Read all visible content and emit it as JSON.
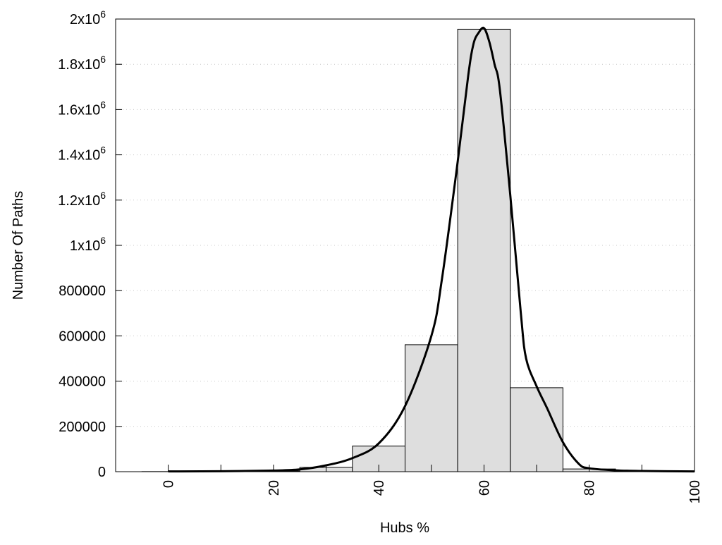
{
  "chart_data": {
    "type": "bar",
    "title": "",
    "xlabel": "Hubs %",
    "ylabel": "Number Of Paths",
    "xlim": [
      -10,
      100
    ],
    "ylim": [
      0,
      2000000
    ],
    "grid": "horizontal dotted",
    "legend": "none",
    "x_ticks": [
      0,
      20,
      40,
      60,
      80,
      100
    ],
    "x_tick_labels": [
      "0",
      "20",
      "40",
      "60",
      "80",
      "100"
    ],
    "y_ticks": [
      0,
      200000,
      400000,
      600000,
      800000,
      1000000,
      1200000,
      1400000,
      1600000,
      1800000,
      2000000
    ],
    "y_tick_labels": [
      {
        "base": "0",
        "exp": ""
      },
      {
        "base": "200000",
        "exp": ""
      },
      {
        "base": "400000",
        "exp": ""
      },
      {
        "base": "600000",
        "exp": ""
      },
      {
        "base": "800000",
        "exp": ""
      },
      {
        "base": "1x10",
        "exp": "6"
      },
      {
        "base": "1.2x10",
        "exp": "6"
      },
      {
        "base": "1.4x10",
        "exp": "6"
      },
      {
        "base": "1.6x10",
        "exp": "6"
      },
      {
        "base": "1.8x10",
        "exp": "6"
      },
      {
        "base": "2x10",
        "exp": "6"
      }
    ],
    "bin_width": 10,
    "bars": [
      {
        "center": 0,
        "value": 500
      },
      {
        "center": 10,
        "value": 1000
      },
      {
        "center": 20,
        "value": 3000
      },
      {
        "center": 30,
        "value": 19000
      },
      {
        "center": 40,
        "value": 113000
      },
      {
        "center": 50,
        "value": 561000
      },
      {
        "center": 60,
        "value": 1955000
      },
      {
        "center": 70,
        "value": 371000
      },
      {
        "center": 80,
        "value": 12000
      },
      {
        "center": 90,
        "value": 2000
      }
    ],
    "curve": {
      "x": [
        0,
        10,
        20,
        25,
        30,
        35,
        40,
        45,
        50,
        52,
        55,
        57,
        58,
        59,
        60,
        61,
        62,
        63,
        65,
        67,
        68,
        70,
        72,
        75,
        78,
        80,
        85,
        90,
        100
      ],
      "y": [
        1000,
        2000,
        5000,
        10000,
        28000,
        60000,
        125000,
        290000,
        600000,
        850000,
        1370000,
        1750000,
        1890000,
        1940000,
        1960000,
        1900000,
        1800000,
        1690000,
        1220000,
        700000,
        500000,
        377000,
        280000,
        130000,
        35000,
        15000,
        6000,
        3000,
        1000
      ]
    },
    "colors": {
      "bar_fill": "#dedede",
      "bar_stroke": "#000000",
      "curve": "#000000",
      "grid": "#c8c8c8"
    }
  }
}
